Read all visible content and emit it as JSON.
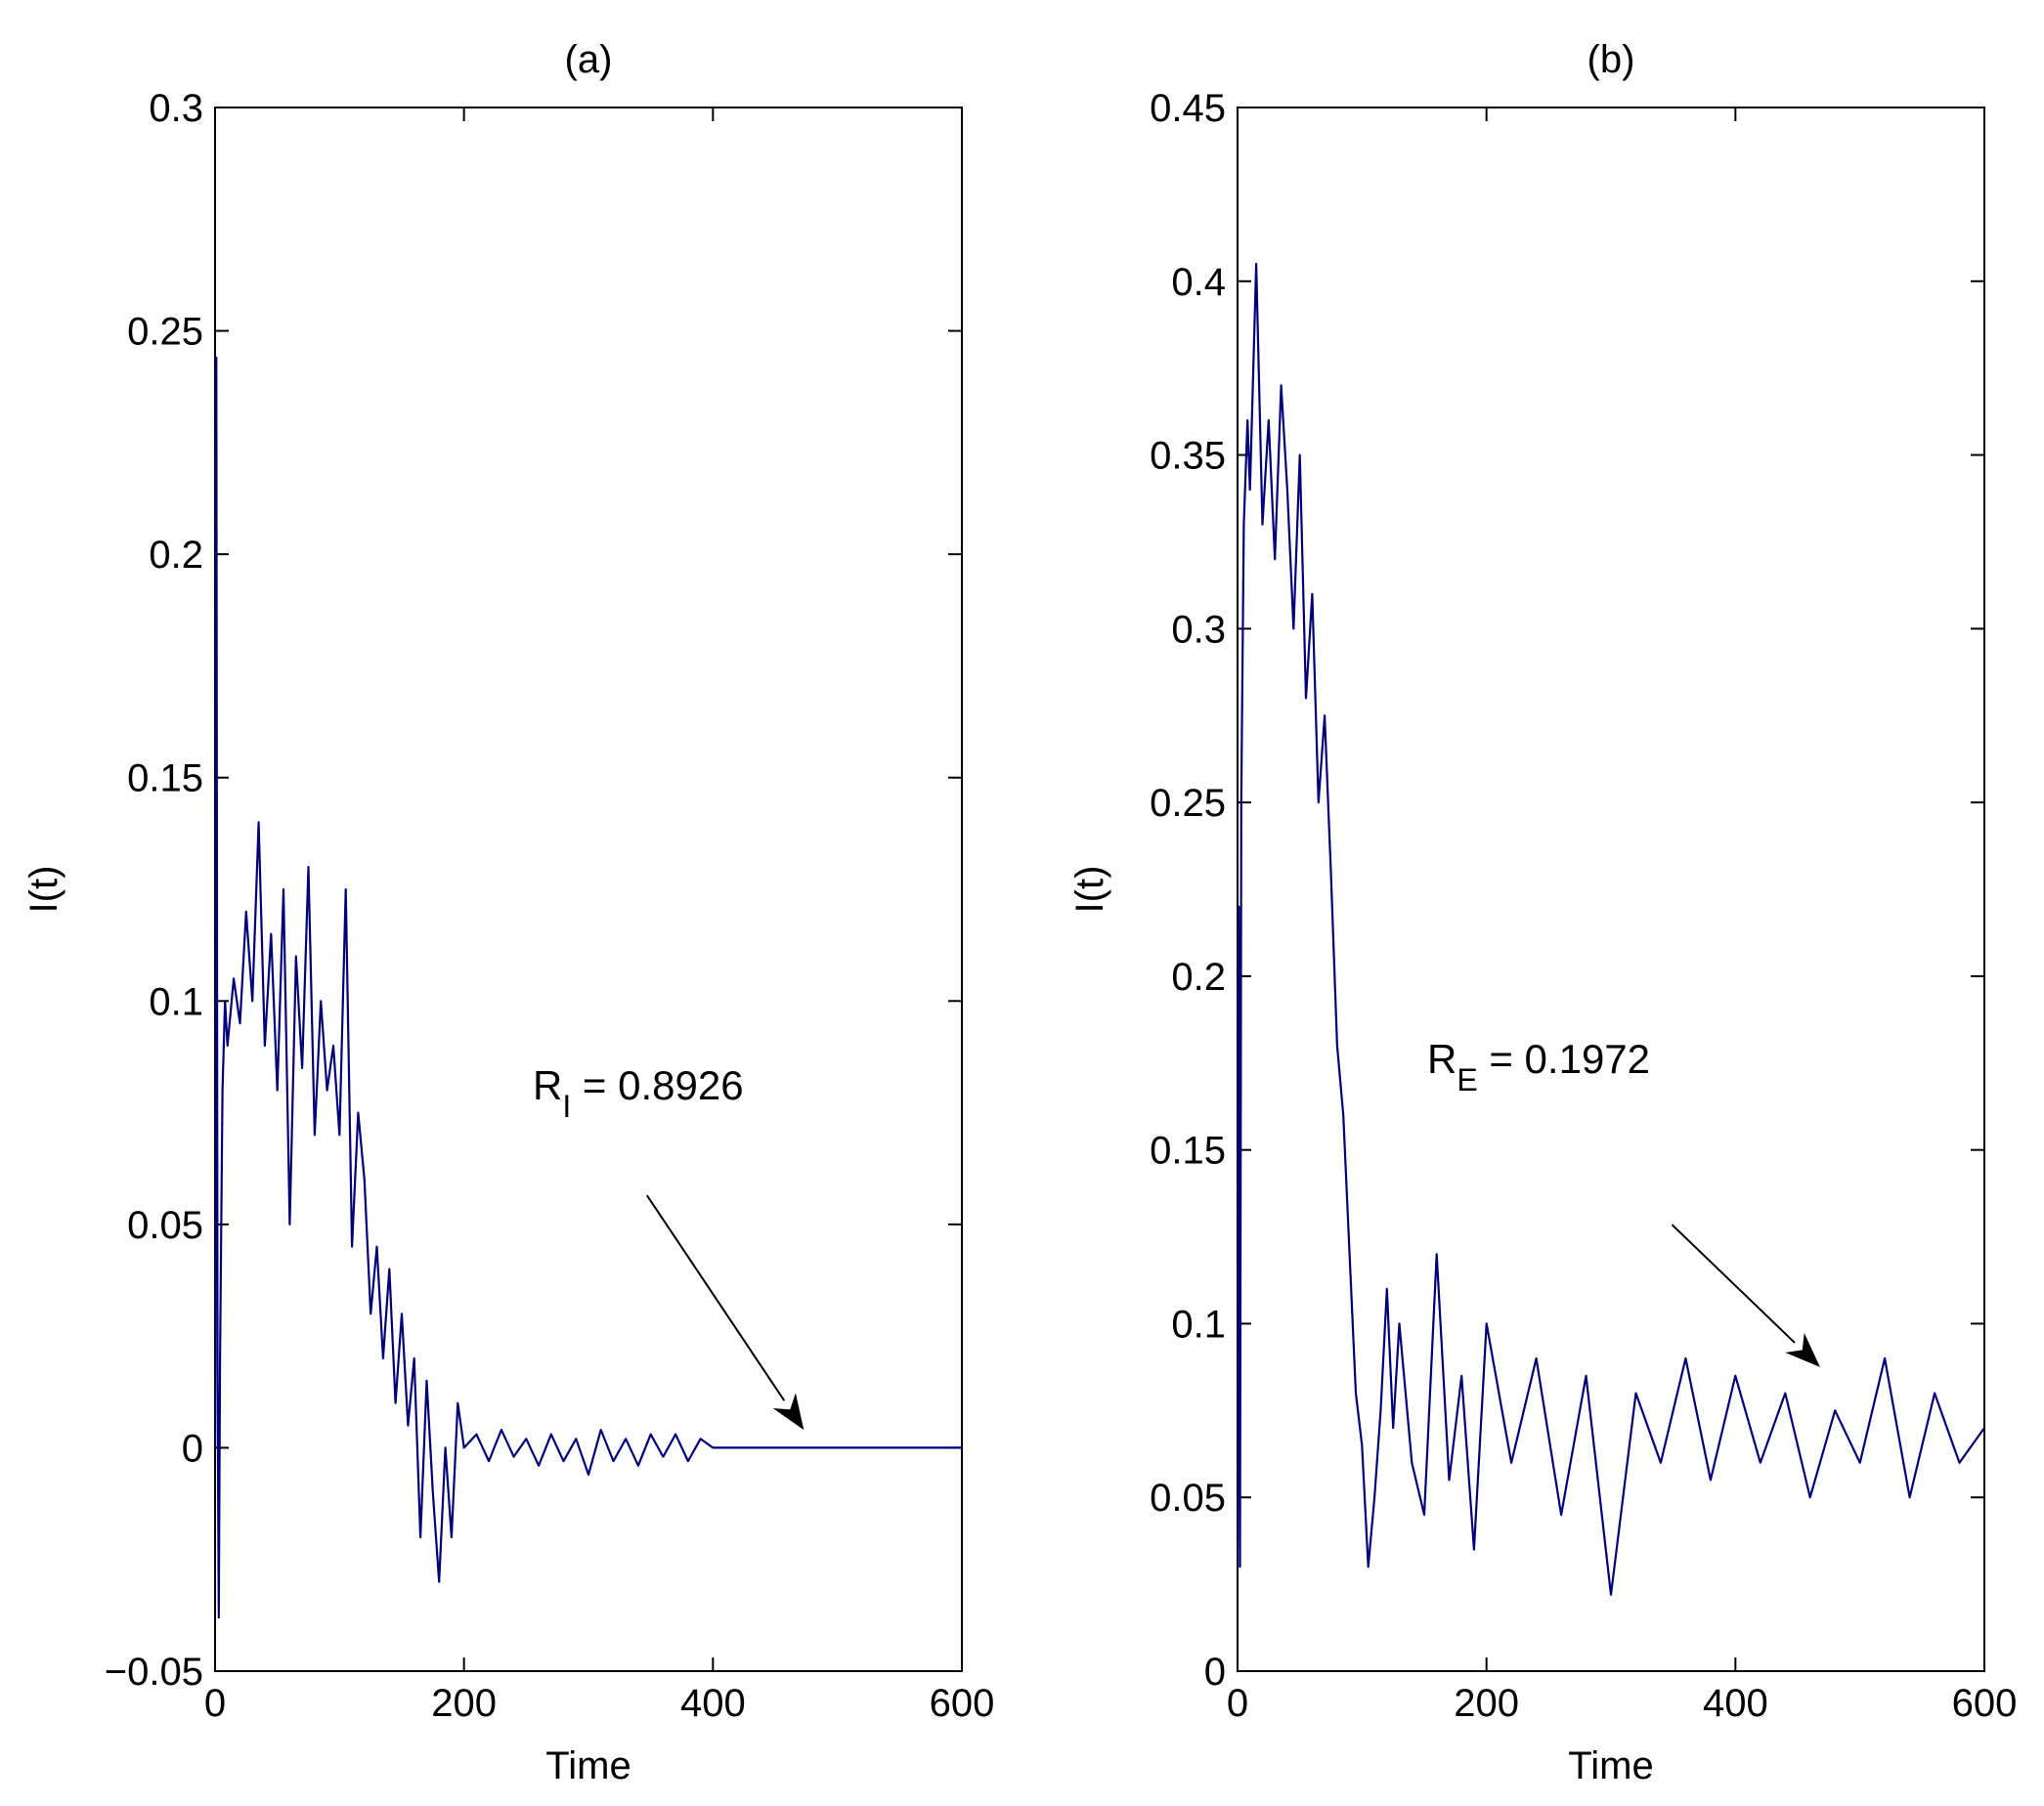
{
  "chart_data": [
    {
      "type": "line",
      "title": "(a)",
      "xlabel": "Time",
      "ylabel": "I(t)",
      "xlim": [
        0,
        600
      ],
      "ylim": [
        -0.05,
        0.3
      ],
      "xticks": [
        0,
        200,
        400,
        600
      ],
      "xtick_labels": [
        "0",
        "200",
        "400",
        "600"
      ],
      "yticks": [
        -0.05,
        0,
        0.05,
        0.1,
        0.15,
        0.2,
        0.25,
        0.3
      ],
      "ytick_labels": [
        "−0.05",
        "0",
        "0.05",
        "0.1",
        "0.15",
        "0.2",
        "0.25",
        "0.3"
      ],
      "grid": false,
      "line_color": "#00007a",
      "series": [
        {
          "name": "I(t)",
          "x": [
            0,
            1,
            2,
            3,
            4,
            6,
            8,
            10,
            15,
            20,
            25,
            30,
            35,
            40,
            45,
            50,
            55,
            60,
            65,
            70,
            75,
            80,
            85,
            90,
            95,
            100,
            105,
            110,
            115,
            120,
            125,
            130,
            135,
            140,
            145,
            150,
            155,
            160,
            165,
            170,
            175,
            180,
            185,
            190,
            195,
            200,
            210,
            220,
            230,
            240,
            250,
            260,
            270,
            280,
            290,
            300,
            310,
            320,
            330,
            340,
            350,
            360,
            370,
            380,
            390,
            400,
            450,
            500,
            550,
            600
          ],
          "y": [
            0.0,
            0.244,
            0.02,
            -0.038,
            0.02,
            0.08,
            0.1,
            0.09,
            0.105,
            0.095,
            0.12,
            0.1,
            0.14,
            0.09,
            0.115,
            0.08,
            0.125,
            0.05,
            0.11,
            0.085,
            0.13,
            0.07,
            0.1,
            0.08,
            0.09,
            0.07,
            0.125,
            0.045,
            0.075,
            0.06,
            0.03,
            0.045,
            0.02,
            0.04,
            0.01,
            0.03,
            0.005,
            0.02,
            -0.02,
            0.015,
            -0.01,
            -0.03,
            0.0,
            -0.02,
            0.01,
            0.0,
            0.003,
            -0.003,
            0.004,
            -0.002,
            0.002,
            -0.004,
            0.003,
            -0.003,
            0.002,
            -0.006,
            0.004,
            -0.003,
            0.002,
            -0.004,
            0.003,
            -0.002,
            0.003,
            -0.003,
            0.002,
            0.0,
            0.0,
            0.0,
            0.0,
            0.0
          ]
        }
      ],
      "annotation": {
        "main": "R",
        "sub": "I",
        "rest": " = 0.8926",
        "arrow_from": [
          347,
          0.0565
        ],
        "arrow_to": [
          473,
          0.004
        ]
      }
    },
    {
      "type": "line",
      "title": "(b)",
      "xlabel": "Time",
      "ylabel": "I(t)",
      "xlim": [
        0,
        600
      ],
      "ylim": [
        0,
        0.45
      ],
      "xticks": [
        0,
        200,
        400,
        600
      ],
      "xtick_labels": [
        "0",
        "200",
        "400",
        "600"
      ],
      "yticks": [
        0,
        0.05,
        0.1,
        0.15,
        0.2,
        0.25,
        0.3,
        0.35,
        0.4,
        0.45
      ],
      "ytick_labels": [
        "0",
        "0.05",
        "0.1",
        "0.15",
        "0.2",
        "0.25",
        "0.3",
        "0.35",
        "0.4",
        "0.45"
      ],
      "grid": false,
      "line_color": "#00007a",
      "series": [
        {
          "name": "I(t)",
          "x": [
            0,
            1,
            2,
            3,
            5,
            8,
            10,
            15,
            20,
            25,
            30,
            35,
            40,
            45,
            50,
            55,
            60,
            65,
            70,
            75,
            80,
            85,
            90,
            95,
            100,
            105,
            110,
            115,
            120,
            125,
            130,
            140,
            150,
            160,
            170,
            180,
            190,
            200,
            220,
            240,
            260,
            280,
            300,
            320,
            340,
            360,
            380,
            400,
            420,
            440,
            460,
            480,
            500,
            520,
            540,
            560,
            580,
            600
          ],
          "y": [
            0.03,
            0.22,
            0.03,
            0.25,
            0.33,
            0.36,
            0.34,
            0.405,
            0.33,
            0.36,
            0.32,
            0.37,
            0.34,
            0.3,
            0.35,
            0.28,
            0.31,
            0.25,
            0.275,
            0.23,
            0.18,
            0.16,
            0.12,
            0.08,
            0.065,
            0.03,
            0.05,
            0.075,
            0.11,
            0.07,
            0.1,
            0.06,
            0.045,
            0.12,
            0.055,
            0.085,
            0.035,
            0.1,
            0.06,
            0.09,
            0.045,
            0.085,
            0.022,
            0.08,
            0.06,
            0.09,
            0.055,
            0.085,
            0.06,
            0.08,
            0.05,
            0.075,
            0.06,
            0.09,
            0.05,
            0.08,
            0.06,
            0.07
          ]
        }
      ],
      "annotation": {
        "main": "R",
        "sub": "E",
        "rest": " = 0.1972",
        "arrow_from": [
          349,
          0.1285
        ],
        "arrow_to": [
          468,
          0.0875
        ]
      }
    }
  ]
}
